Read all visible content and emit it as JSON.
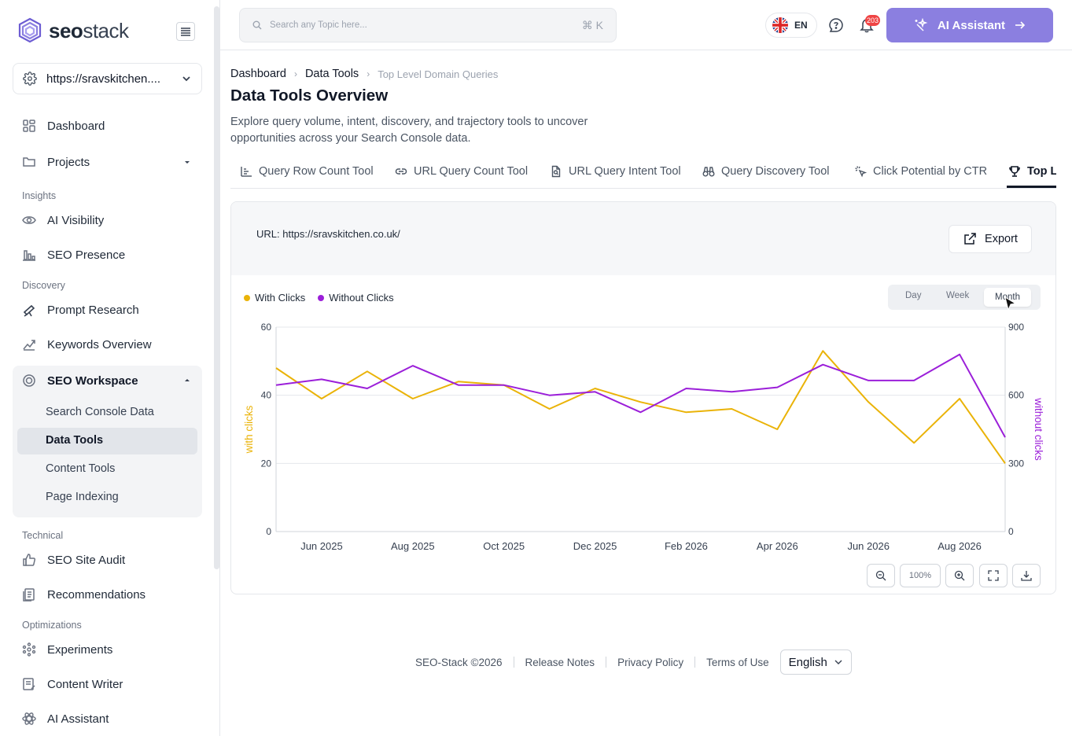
{
  "brand": {
    "name_bold": "seo",
    "name_light": "stack"
  },
  "site_selector": {
    "value": "https://sravskitchen...."
  },
  "nav": {
    "dashboard": "Dashboard",
    "projects": "Projects",
    "insights_label": "Insights",
    "ai_visibility": "AI Visibility",
    "seo_presence": "SEO Presence",
    "discovery_label": "Discovery",
    "prompt_research": "Prompt Research",
    "keywords_overview": "Keywords Overview",
    "seo_workspace": "SEO Workspace",
    "workspace_items": [
      "Search Console Data",
      "Data Tools",
      "Content Tools",
      "Page Indexing"
    ],
    "technical_label": "Technical",
    "seo_site_audit": "SEO Site Audit",
    "recommendations": "Recommendations",
    "optimizations_label": "Optimizations",
    "experiments": "Experiments",
    "content_writer": "Content Writer",
    "ai_assistant": "AI Assistant"
  },
  "topbar": {
    "search_placeholder": "Search any Topic here...",
    "search_shortcut": "⌘ K",
    "language_code": "EN",
    "notification_count": "203",
    "ai_button": "AI Assistant"
  },
  "breadcrumb": [
    "Dashboard",
    "Data Tools",
    "Top Level Domain Queries"
  ],
  "page": {
    "title": "Data Tools Overview",
    "description": "Explore query volume, intent, discovery, and trajectory tools to uncover opportunities across your Search Console data."
  },
  "tabs": [
    "Query Row Count Tool",
    "URL Query Count Tool",
    "URL Query Intent Tool",
    "Query Discovery Tool",
    "Click Potential by CTR",
    "Top Level"
  ],
  "card": {
    "url_label": "URL: https://sravskitchen.co.uk/",
    "export_label": "Export",
    "period_options": [
      "Day",
      "Week",
      "Month"
    ],
    "period_selected": "Month",
    "zoom_label": "100%"
  },
  "colors": {
    "with_clicks": "#eab308",
    "without_clicks": "#9b1fd9",
    "accent": "#8b7fe0"
  },
  "chart_data": {
    "type": "line",
    "x": [
      "May 2025",
      "Jun 2025",
      "Jul 2025",
      "Aug 2025",
      "Sep 2025",
      "Oct 2025",
      "Nov 2025",
      "Dec 2025",
      "Jan 2026",
      "Feb 2026",
      "Mar 2026",
      "Apr 2026",
      "May 2026",
      "Jun 2026",
      "Jul 2026",
      "Aug 2026",
      "Sep 2026"
    ],
    "x_tick_labels": [
      "Jun 2025",
      "Aug 2025",
      "Oct 2025",
      "Dec 2025",
      "Feb 2026",
      "Apr 2026",
      "Jun 2026",
      "Aug 2026"
    ],
    "series": [
      {
        "name": "With Clicks",
        "axis": "left",
        "values": [
          48,
          39,
          47,
          39,
          44,
          43,
          36,
          42,
          38,
          35,
          36,
          30,
          53,
          38,
          26,
          39,
          20
        ]
      },
      {
        "name": "Without Clicks",
        "axis": "right",
        "values": [
          645,
          670,
          630,
          730,
          645,
          645,
          600,
          615,
          525,
          630,
          615,
          635,
          735,
          665,
          665,
          780,
          415
        ]
      }
    ],
    "ylabel_left": "with clicks",
    "ylabel_right": "without clicks",
    "ylim_left": [
      0,
      60
    ],
    "ylim_right": [
      0,
      900
    ],
    "yticks_left": [
      0,
      20,
      40,
      60
    ],
    "yticks_right": [
      0,
      300,
      600,
      900
    ],
    "grid": true,
    "legend": "top-left"
  }
}
